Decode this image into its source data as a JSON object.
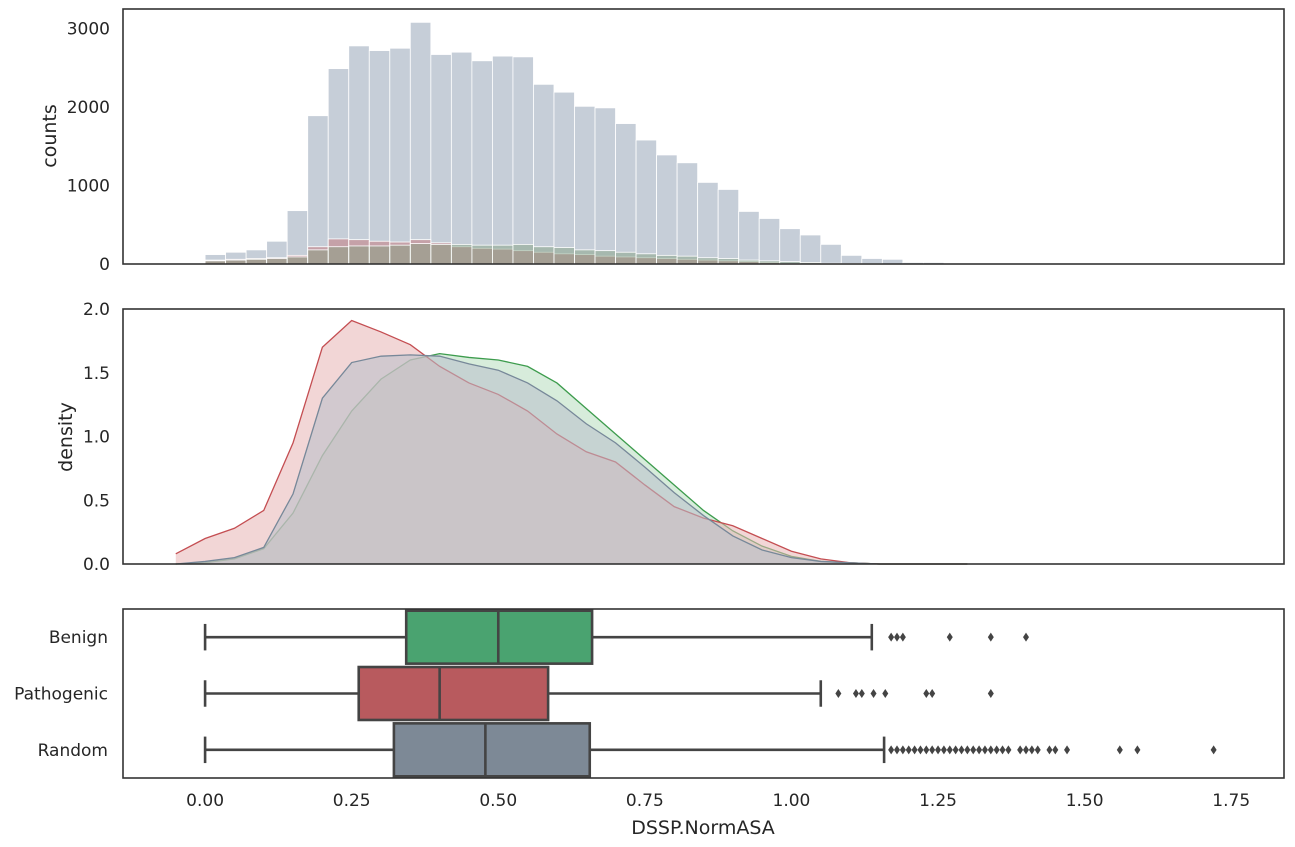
{
  "chart_data": [
    {
      "type": "histogram",
      "ylabel": "counts",
      "xlim": [
        -0.14,
        1.84
      ],
      "ylim": [
        0,
        3250
      ],
      "yticks": [
        "0",
        "1000",
        "2000",
        "3000"
      ],
      "bin_width": 0.035,
      "grid": false,
      "series": [
        {
          "color": "#b0bbc9",
          "bin_start": 0.0,
          "values": [
            120,
            150,
            180,
            290,
            680,
            1890,
            2490,
            2780,
            2720,
            2750,
            3080,
            2670,
            2700,
            2590,
            2650,
            2640,
            2290,
            2190,
            2010,
            1990,
            1790,
            1580,
            1390,
            1290,
            1040,
            950,
            670,
            580,
            450,
            370,
            250,
            110,
            70,
            60,
            20,
            20,
            10,
            10,
            0,
            0,
            0,
            0,
            0,
            0,
            0,
            0,
            0,
            0,
            0,
            0
          ]
        },
        {
          "color": "#c46a6e",
          "bin_start": 0.0,
          "values": [
            50,
            60,
            70,
            80,
            110,
            220,
            320,
            310,
            290,
            280,
            310,
            270,
            220,
            200,
            190,
            170,
            150,
            130,
            120,
            100,
            90,
            80,
            70,
            60,
            50,
            40,
            30,
            20,
            10,
            10,
            5,
            5,
            0,
            0,
            0,
            0,
            0,
            0,
            0,
            0,
            0,
            0,
            0,
            0,
            0,
            0,
            0,
            0,
            0,
            0
          ]
        },
        {
          "color": "#7f9e7c",
          "bin_start": 0.0,
          "values": [
            40,
            50,
            60,
            70,
            90,
            180,
            220,
            230,
            230,
            240,
            260,
            250,
            250,
            240,
            240,
            250,
            220,
            210,
            180,
            170,
            150,
            130,
            110,
            100,
            80,
            70,
            50,
            40,
            30,
            20,
            10,
            5,
            5,
            0,
            0,
            0,
            0,
            0,
            0,
            0,
            0,
            0,
            0,
            0,
            0,
            0,
            0,
            0,
            0,
            0
          ]
        }
      ]
    },
    {
      "type": "area",
      "ylabel": "density",
      "xlim": [
        -0.14,
        1.84
      ],
      "ylim": [
        0,
        2.0
      ],
      "yticks": [
        "0.0",
        "0.5",
        "1.0",
        "1.5",
        "2.0"
      ],
      "x": [
        -0.05,
        0.0,
        0.05,
        0.1,
        0.15,
        0.2,
        0.25,
        0.3,
        0.35,
        0.4,
        0.45,
        0.5,
        0.55,
        0.6,
        0.65,
        0.7,
        0.75,
        0.8,
        0.85,
        0.9,
        0.95,
        1.0,
        1.05,
        1.1,
        1.15,
        1.2,
        1.25,
        1.3
      ],
      "series": [
        {
          "name": "Benign",
          "color": "#3d9c4d",
          "fill": "#b7dcbe",
          "values": [
            0.0,
            0.01,
            0.04,
            0.12,
            0.4,
            0.85,
            1.2,
            1.45,
            1.6,
            1.65,
            1.62,
            1.6,
            1.55,
            1.42,
            1.22,
            1.02,
            0.82,
            0.62,
            0.42,
            0.26,
            0.14,
            0.06,
            0.02,
            0.01,
            0.0,
            0.0,
            0.0,
            0.0
          ]
        },
        {
          "name": "Pathogenic",
          "color": "#c44e52",
          "fill": "#e8b4b5",
          "values": [
            0.08,
            0.2,
            0.28,
            0.42,
            0.95,
            1.7,
            1.91,
            1.82,
            1.72,
            1.55,
            1.42,
            1.33,
            1.2,
            1.02,
            0.88,
            0.8,
            0.62,
            0.45,
            0.36,
            0.3,
            0.2,
            0.1,
            0.04,
            0.01,
            0.0,
            0.0,
            0.0,
            0.0
          ]
        },
        {
          "name": "Random",
          "color": "#778899",
          "fill": "#b8c0ca",
          "values": [
            0.0,
            0.02,
            0.05,
            0.13,
            0.55,
            1.3,
            1.58,
            1.63,
            1.64,
            1.63,
            1.57,
            1.52,
            1.42,
            1.28,
            1.1,
            0.95,
            0.76,
            0.56,
            0.38,
            0.22,
            0.11,
            0.05,
            0.02,
            0.01,
            0.0,
            0.0,
            0.0,
            0.0
          ]
        }
      ]
    },
    {
      "type": "box",
      "xlabel": "DSSP.NormASA",
      "xlim": [
        -0.14,
        1.84
      ],
      "xticks": [
        "0.00",
        "0.25",
        "0.50",
        "0.75",
        "1.00",
        "1.25",
        "1.50",
        "1.75"
      ],
      "categories": [
        "Benign",
        "Pathogenic",
        "Random"
      ],
      "boxes": [
        {
          "label": "Benign",
          "color": "#4aa370",
          "whislo": 0.0,
          "q1": 0.343,
          "median": 0.5,
          "q3": 0.66,
          "whishi": 1.137,
          "fliers": [
            1.17,
            1.18,
            1.19,
            1.27,
            1.34,
            1.4
          ]
        },
        {
          "label": "Pathogenic",
          "color": "#b85a5e",
          "whislo": 0.0,
          "q1": 0.262,
          "median": 0.4,
          "q3": 0.585,
          "whishi": 1.05,
          "fliers": [
            1.08,
            1.11,
            1.12,
            1.14,
            1.16,
            1.23,
            1.24,
            1.34
          ]
        },
        {
          "label": "Random",
          "color": "#7d8996",
          "whislo": 0.0,
          "q1": 0.322,
          "median": 0.478,
          "q3": 0.656,
          "whishi": 1.158,
          "fliers": [
            1.17,
            1.18,
            1.19,
            1.2,
            1.21,
            1.22,
            1.23,
            1.24,
            1.25,
            1.26,
            1.27,
            1.28,
            1.29,
            1.3,
            1.31,
            1.32,
            1.33,
            1.34,
            1.35,
            1.36,
            1.37,
            1.39,
            1.4,
            1.41,
            1.42,
            1.44,
            1.45,
            1.47,
            1.56,
            1.59,
            1.72
          ]
        }
      ]
    }
  ]
}
